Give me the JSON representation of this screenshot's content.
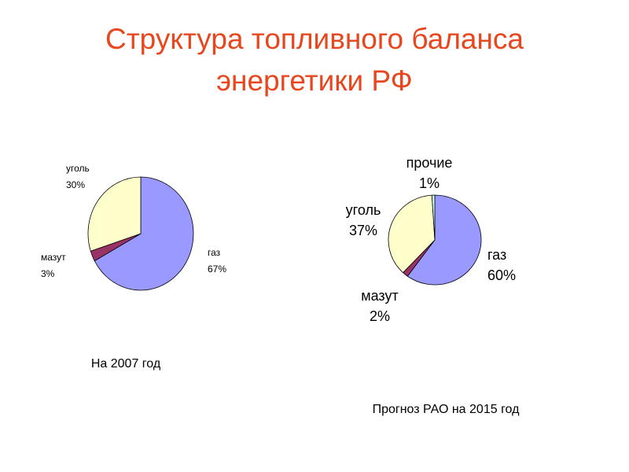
{
  "title": [
    "Структура топливного баланса",
    "энергетики РФ"
  ],
  "chart_data": [
    {
      "type": "pie",
      "caption": "На 2007 год",
      "categories": [
        "газ",
        "мазут",
        "уголь"
      ],
      "values": [
        67,
        3,
        30
      ],
      "value_labels": [
        "67%",
        "3%",
        "30%"
      ],
      "colors": [
        "#9999ff",
        "#993366",
        "#ffffcc"
      ]
    },
    {
      "type": "pie",
      "caption": "Прогноз РАО на 2015 год",
      "categories": [
        "газ",
        "мазут",
        "уголь",
        "прочие"
      ],
      "values": [
        60,
        2,
        37,
        1
      ],
      "value_labels": [
        "60%",
        "2%",
        "37%",
        "1%"
      ],
      "colors": [
        "#9999ff",
        "#993366",
        "#ffffcc",
        "#ccffff"
      ]
    }
  ]
}
